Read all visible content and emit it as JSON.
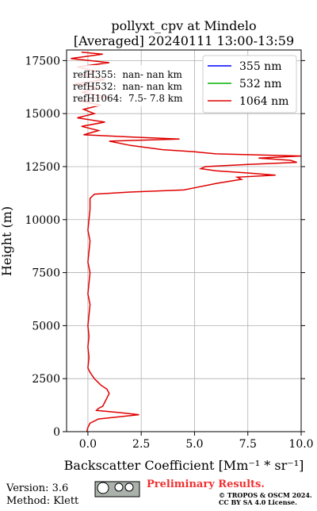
{
  "chart_data": {
    "type": "line",
    "title": "pollyxt_cpv at Mindelo",
    "subtitle": "[Averaged] 20240111 13:00-13:59",
    "x_label": "Backscatter Coefficient [Mm⁻¹ * sr⁻¹]",
    "y_label": "Height (m)",
    "y": [
      0,
      200,
      400,
      600,
      800,
      900,
      1000,
      1100,
      1200,
      1400,
      1600,
      1800,
      2000,
      2200,
      2500,
      2800,
      3000,
      3500,
      4000,
      4500,
      5000,
      5500,
      6000,
      6500,
      7000,
      7500,
      8000,
      8500,
      9000,
      9500,
      10000,
      10500,
      11000,
      11200,
      11300,
      11400,
      11500,
      11700,
      11900,
      12000,
      12100,
      12200,
      12300,
      12400,
      12500,
      12600,
      12700,
      12800,
      12900,
      13000,
      13100,
      13200,
      13300,
      13500,
      13700,
      13800,
      13900,
      14000,
      14200,
      14400,
      14600,
      14800,
      15000,
      15200,
      15400,
      15600,
      15800,
      16000,
      16200,
      16400,
      16600,
      16800,
      17000,
      17200,
      17400,
      17600,
      17800,
      17900
    ],
    "series": [
      {
        "name": "355 nm",
        "color": "#0000ff",
        "values": [
          null,
          null,
          null,
          null,
          null,
          null,
          null,
          null,
          null,
          null,
          null,
          null,
          null,
          null,
          null,
          null,
          null,
          null,
          null,
          null,
          null,
          null,
          null,
          null,
          null,
          null,
          null,
          null,
          null,
          null,
          null,
          null,
          null,
          null,
          null,
          null,
          null,
          null,
          null,
          null,
          null,
          null,
          null,
          null,
          null,
          null,
          null,
          null,
          null,
          null,
          null,
          null,
          null,
          null,
          null,
          null,
          null,
          null,
          null,
          null,
          null,
          null,
          null,
          null,
          null,
          null,
          null,
          null,
          null,
          null,
          null,
          null,
          null,
          null,
          null,
          null,
          null,
          null
        ]
      },
      {
        "name": "532 nm",
        "color": "#00b400",
        "values": [
          null,
          null,
          null,
          null,
          null,
          null,
          null,
          null,
          null,
          null,
          null,
          null,
          null,
          null,
          null,
          null,
          null,
          null,
          null,
          null,
          null,
          null,
          null,
          null,
          null,
          null,
          null,
          null,
          null,
          null,
          null,
          null,
          null,
          null,
          null,
          null,
          null,
          null,
          null,
          null,
          null,
          null,
          null,
          null,
          null,
          null,
          null,
          null,
          null,
          null,
          null,
          null,
          null,
          null,
          null,
          null,
          null,
          null,
          null,
          null,
          null,
          null,
          null,
          null,
          null,
          null,
          null,
          null,
          null,
          null,
          null,
          null,
          null,
          null,
          null,
          null,
          null,
          null
        ]
      },
      {
        "name": "1064 nm",
        "color": "#e00000",
        "values": [
          -0.05,
          0,
          0.1,
          0.5,
          2.4,
          1.5,
          0.4,
          0.5,
          0.7,
          0.8,
          0.9,
          1.0,
          0.9,
          0.6,
          0.3,
          0.1,
          0,
          0.05,
          0,
          0.05,
          0,
          0.05,
          0.1,
          0,
          0.05,
          0.1,
          0,
          0.05,
          0.1,
          0,
          0.05,
          0.1,
          0.1,
          0.3,
          2.0,
          4.5,
          5.0,
          6.0,
          7.2,
          7.0,
          8.8,
          7.5,
          6.0,
          5.3,
          5.5,
          7.5,
          9.8,
          9.5,
          8.0,
          10.0,
          6.0,
          5.0,
          3.5,
          2.0,
          1.0,
          4.3,
          2.0,
          -0.2,
          0.5,
          -0.3,
          0.8,
          -0.5,
          0.3,
          -0.2,
          0.6,
          -0.4,
          0.9,
          -0.3,
          0.5,
          -0.6,
          0.8,
          -0.2,
          0.4,
          -0.5,
          1.0,
          -0.8,
          0.7,
          -0.3
        ]
      }
    ],
    "xlim": [
      -1,
      10
    ],
    "ylim": [
      0,
      18000
    ],
    "xticks": [
      {
        "value": 0,
        "label": "0.0"
      },
      2.5,
      {
        "value": 5,
        "label": "5.0"
      },
      7.5,
      {
        "value": 10,
        "label": "10.0"
      }
    ],
    "yticks": [
      0,
      2500,
      5000,
      7500,
      10000,
      12500,
      15000,
      17500
    ],
    "grid": true,
    "legend": "upper right",
    "annotations": [
      "refH355:  nan- nan km",
      "refH532:  nan- nan km",
      "refH1064:  7.5- 7.8 km"
    ]
  },
  "footer": {
    "version": "Version: 3.6",
    "method": "Method: Klett",
    "status": "Preliminary Results.",
    "copyright": "© TROPOS & OSCM 2024.",
    "license": "CC BY SA 4.0 License."
  }
}
